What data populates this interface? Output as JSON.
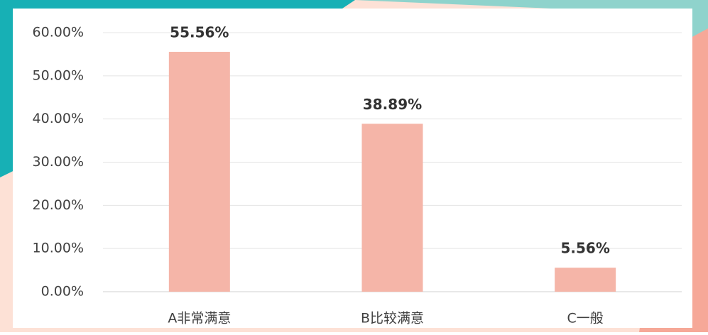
{
  "chart_data": {
    "type": "bar",
    "categories": [
      "A非常满意",
      "B比较满意",
      "C一般"
    ],
    "values": [
      55.56,
      38.89,
      5.56
    ],
    "value_labels": [
      "55.56%",
      "38.89%",
      "5.56%"
    ],
    "color": "#f5b5a8",
    "ylim": [
      0,
      60
    ],
    "yticks": [
      {
        "value": 0,
        "label": "0.00%"
      },
      {
        "value": 10,
        "label": "10.00%"
      },
      {
        "value": 20,
        "label": "20.00%"
      },
      {
        "value": 30,
        "label": "30.00%"
      },
      {
        "value": 40,
        "label": "40.00%"
      },
      {
        "value": 50,
        "label": "50.00%"
      },
      {
        "value": 60,
        "label": "60.00%"
      }
    ],
    "grid": true
  }
}
